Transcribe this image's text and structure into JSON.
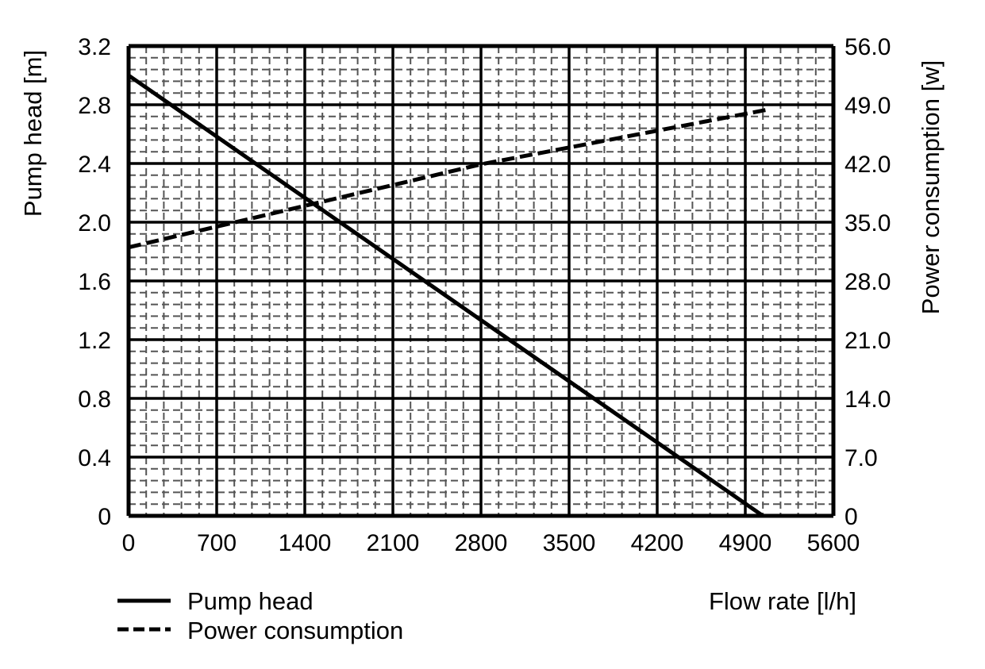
{
  "chart_data": {
    "type": "line",
    "title": "",
    "xlabel": "Flow rate [l/h]",
    "ylabel": "Pump head [m]",
    "y2label": "Power consumption [w]",
    "xlim": [
      0,
      5600
    ],
    "ylim": [
      0,
      3.2
    ],
    "y2lim": [
      0,
      56
    ],
    "xticks": [
      "0",
      "700",
      "1400",
      "2100",
      "2800",
      "3500",
      "4200",
      "4900",
      "5600"
    ],
    "yticks": [
      "0",
      "0.4",
      "0.8",
      "1.2",
      "1.6",
      "2.0",
      "2.4",
      "2.8",
      "3.2"
    ],
    "y2ticks": [
      "0",
      "7.0",
      "14.0",
      "21.0",
      "28.0",
      "35.0",
      "42.0",
      "49.0",
      "56.0"
    ],
    "grid": true,
    "minor_subdivisions": 5,
    "legend_position": "bottom-left",
    "series": [
      {
        "name": "Pump head",
        "axis": "left",
        "style": "solid",
        "x": [
          0,
          5040
        ],
        "y": [
          3.0,
          0
        ]
      },
      {
        "name": "Power consumption",
        "axis": "right",
        "style": "dashed",
        "x": [
          0,
          2800,
          5070
        ],
        "y": [
          32.0,
          41.9,
          48.4
        ]
      }
    ]
  }
}
